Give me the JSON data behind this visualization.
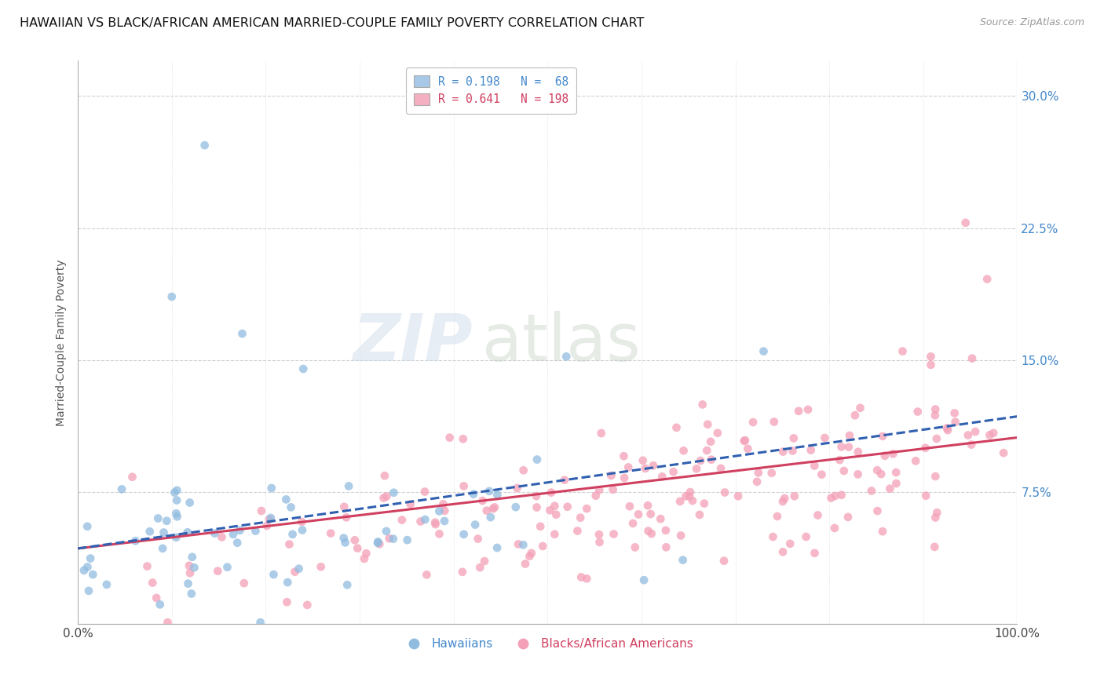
{
  "title": "HAWAIIAN VS BLACK/AFRICAN AMERICAN MARRIED-COUPLE FAMILY POVERTY CORRELATION CHART",
  "source": "Source: ZipAtlas.com",
  "ylabel": "Married-Couple Family Poverty",
  "yticks": [
    "7.5%",
    "15.0%",
    "22.5%",
    "30.0%"
  ],
  "ytick_vals": [
    0.075,
    0.15,
    0.225,
    0.3
  ],
  "watermark_zip": "ZIP",
  "watermark_atlas": "atlas",
  "legend_row1": "R = 0.198   N =  68",
  "legend_row2": "R = 0.641   N = 198",
  "legend_color1": "#a8c8e8",
  "legend_color2": "#f4b0c0",
  "legend_labels": [
    "Hawaiians",
    "Blacks/African Americans"
  ],
  "hawaiian_color": "#90bce0",
  "black_color": "#f4a0b8",
  "hawaiian_line_color": "#3060b0",
  "black_line_color": "#d04060",
  "x_min": 0.0,
  "x_max": 1.0,
  "y_min": 0.0,
  "y_max": 0.32,
  "grid_color": "#cccccc",
  "background_color": "#ffffff",
  "title_fontsize": 11.5,
  "legend_text_color1": "#4488cc",
  "legend_text_color2": "#d04060"
}
